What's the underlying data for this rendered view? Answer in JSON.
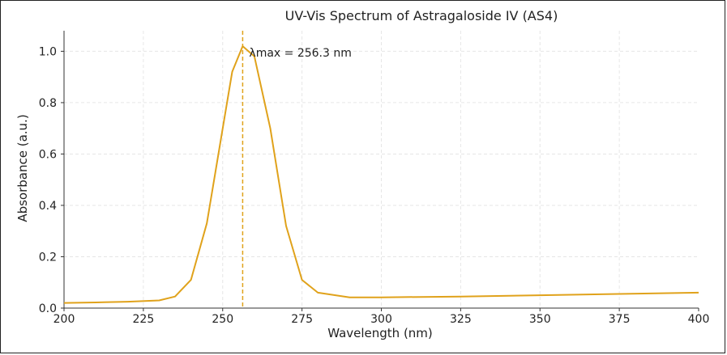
{
  "chart_data": {
    "type": "line",
    "title": "UV-Vis Spectrum of Astragaloside IV (AS4)",
    "xlabel": "Wavelength (nm)",
    "ylabel": "Absorbance (a.u.)",
    "xlim": [
      200,
      400
    ],
    "ylim": [
      0,
      1.08
    ],
    "x_ticks": [
      "200",
      "225",
      "250",
      "275",
      "300",
      "325",
      "350",
      "375",
      "400"
    ],
    "y_ticks": [
      "0.0",
      "0.2",
      "0.4",
      "0.6",
      "0.8",
      "1.0"
    ],
    "grid": true,
    "line_color": "#E0A21B",
    "series": [
      {
        "name": "",
        "x": [
          200,
          210,
          220,
          230,
          235,
          240,
          245,
          250,
          253,
          256.3,
          260,
          265,
          270,
          275,
          280,
          290,
          300,
          325,
          350,
          375,
          400
        ],
        "values": [
          0.02,
          0.022,
          0.025,
          0.03,
          0.045,
          0.11,
          0.33,
          0.7,
          0.92,
          1.02,
          0.98,
          0.7,
          0.32,
          0.11,
          0.06,
          0.042,
          0.042,
          0.045,
          0.05,
          0.055,
          0.06
        ]
      }
    ],
    "annotation": {
      "text": "λmax = 256.3 nm",
      "x": 256.3
    }
  }
}
